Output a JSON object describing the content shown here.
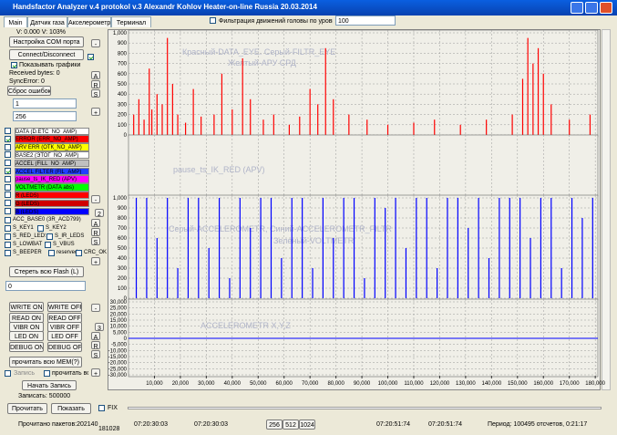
{
  "window": {
    "title": "Handsfactor Analyzer v.4 protokol v.3 Alexandr Kohlov Heater-on-line Russia 20.03.2014"
  },
  "tabs": [
    "Main",
    "Датчик газа",
    "Акселерометр",
    "Терминал"
  ],
  "toolbar": {
    "filter_label": "Фильтрация движений головы по уровню",
    "filter_value": "100"
  },
  "left": {
    "voltage": "V: 0.000   V: 103%",
    "com_button": "Настройка COM порта",
    "connect_button": "Connect/Disconnect",
    "show_graphs": "Показывать графики",
    "received": "Received bytes: 0",
    "sync": "SyncError: 0",
    "reset_button": "Сброс ошибок",
    "input1": "1",
    "input2": "256",
    "channels": [
      {
        "label": "DATA (D.ETC_NO_AMP)",
        "color": "#ffffff",
        "checked": false
      },
      {
        "label": "ERROR (ERR_NO_AMP)",
        "color": "#ff0000",
        "checked": true
      },
      {
        "label": "ARV ERR (ОТК_NO_AMP)",
        "color": "#ffff00",
        "checked": false
      },
      {
        "label": "BASE2 (ЭТОГ_NO_AMP)",
        "color": "#ffffff",
        "checked": false
      },
      {
        "label": "ACCEL (FILL_NO_AMP)",
        "color": "#c0c0c0",
        "checked": false
      },
      {
        "label": "ACCEL FILTER (FIL_AMP)",
        "color": "#2040ff",
        "checked": true
      },
      {
        "label": "pause_ts_IK_RED (APV)",
        "color": "#ff00ff",
        "checked": false
      },
      {
        "label": "VOLTMETR (DATA abs)",
        "color": "#00ff00",
        "checked": false
      },
      {
        "label": "R (LEDS)",
        "color": "#ff0000",
        "checked": false
      },
      {
        "label": "G (LEDS)",
        "color": "#d00000",
        "checked": false
      },
      {
        "label": "B (LEDS)",
        "color": "#0000ff",
        "checked": false
      }
    ],
    "flags": [
      "ACC_BASE0 (3R_ACD799)",
      "S_KEY1",
      "S_KEY2",
      "S_RED_LEDS",
      "S_IR_LEDS",
      "S_LOWBAT",
      "S_VBUS",
      "S_BEEPER",
      "reserved",
      "CRC_OK"
    ],
    "erase_button": "Стереть всю Flash (L)",
    "erase_input": "0",
    "commands": [
      "WRITE ON",
      "WRITE OFF",
      "READ ON",
      "READ OFF",
      "VIBR ON",
      "VIBR OFF",
      "LED ON",
      "LED OFF",
      "DEBUG ON",
      "DEBUG OFF"
    ],
    "read_mem": "прочитать всю MEM(?)",
    "record": "Запись",
    "read_all": "прочитать все",
    "start_record": "Начать Запись",
    "record_count": "Записать: 500000"
  },
  "side_controls": [
    "-",
    "A",
    "R",
    "S",
    "+",
    "-",
    "2",
    "A",
    "R",
    "S",
    "+",
    "-",
    "3",
    "A",
    "R",
    "S",
    "+"
  ],
  "chart_data": [
    {
      "type": "spike",
      "annotations": [
        "Красный-DATA_EYE. Серый-FILTR_EYE",
        "Желтый-АРУ СРД"
      ],
      "xlim": [
        0,
        181000
      ],
      "ylim": [
        0,
        1000
      ],
      "grid": true,
      "yticks": [
        {
          "value": 1000,
          "label": "1,000"
        },
        900,
        800,
        700,
        600,
        500,
        400,
        300,
        200,
        100,
        0
      ],
      "series": [
        {
          "color": "#ff0000",
          "x": [
            2000,
            4000,
            6000,
            8000,
            9000,
            11000,
            13000,
            15000,
            17000,
            19000,
            22000,
            25000,
            28000,
            33000,
            36000,
            40000,
            44000,
            47000,
            52000,
            56000,
            62000,
            66000,
            70000,
            73000,
            76000,
            79000,
            85000,
            92000,
            100000,
            110000,
            118000,
            128000,
            138000,
            148000,
            152000,
            154000,
            156000,
            158000,
            160000,
            163000,
            170000,
            178000
          ],
          "values": [
            200,
            350,
            150,
            650,
            250,
            400,
            300,
            950,
            500,
            200,
            120,
            450,
            180,
            200,
            600,
            250,
            750,
            350,
            150,
            200,
            100,
            180,
            450,
            300,
            850,
            350,
            200,
            150,
            100,
            120,
            150,
            100,
            150,
            200,
            550,
            950,
            700,
            850,
            600,
            300,
            150,
            200
          ]
        }
      ]
    },
    {
      "type": "line",
      "annotations": [
        "pause_ts_IK_RED (APV)"
      ],
      "xlim": [
        0,
        181000
      ],
      "grid": true
    },
    {
      "type": "spike",
      "annotations": [
        "Серый-ACCELEROMETR, Синий-ACCELEROMETR_FILTR",
        "Зеленый-VOLTMETR"
      ],
      "xlim": [
        0,
        181000
      ],
      "ylim": [
        0,
        1000
      ],
      "grid": true,
      "yticks": [
        {
          "value": 1000,
          "label": "1,000"
        },
        900,
        800,
        700,
        600,
        500,
        400,
        300,
        200,
        100,
        0
      ],
      "series": [
        {
          "color": "#0000ff",
          "x": [
            3000,
            7000,
            11000,
            15000,
            19000,
            23000,
            27000,
            31000,
            35000,
            39000,
            43000,
            47000,
            51000,
            55000,
            59000,
            63000,
            67000,
            71000,
            75000,
            79000,
            83000,
            87000,
            91000,
            95000,
            99000,
            103000,
            107000,
            111000,
            115000,
            119000,
            123000,
            127000,
            131000,
            135000,
            139000,
            143000,
            147000,
            151000,
            155000,
            159000,
            163000,
            167000,
            171000,
            175000,
            179000
          ],
          "values": [
            1000,
            1000,
            600,
            1000,
            300,
            1000,
            1000,
            500,
            1000,
            200,
            1000,
            700,
            1000,
            1000,
            400,
            1000,
            1000,
            300,
            1000,
            600,
            1000,
            1000,
            200,
            1000,
            900,
            1000,
            500,
            1000,
            1000,
            300,
            1000,
            1000,
            700,
            1000,
            400,
            1000,
            1000,
            1000,
            600,
            1000,
            1000,
            300,
            1000,
            800,
            1000
          ]
        }
      ]
    },
    {
      "type": "line",
      "annotations": [
        "ACCELEROMETR X,Y,Z"
      ],
      "xlim": [
        0,
        181000
      ],
      "ylim": [
        -30000,
        30000
      ],
      "grid": true,
      "yticks": [
        {
          "value": 30000,
          "label": "30,000"
        },
        {
          "value": 25000,
          "label": "25,000"
        },
        {
          "value": 20000,
          "label": "20,000"
        },
        {
          "value": 15000,
          "label": "15,000"
        },
        {
          "value": 10000,
          "label": "10,000"
        },
        {
          "value": 5000,
          "label": "5,000"
        },
        0,
        {
          "value": -5000,
          "label": "-5,000"
        },
        {
          "value": -10000,
          "label": "-10,000"
        },
        {
          "value": -15000,
          "label": "-15,000"
        },
        {
          "value": -20000,
          "label": "-20,000"
        },
        {
          "value": -25000,
          "label": "-25,000"
        },
        {
          "value": -30000,
          "label": "-30,000"
        }
      ],
      "xticks": [
        {
          "value": 10000,
          "label": "10,000"
        },
        {
          "value": 20000,
          "label": "20,000"
        },
        {
          "value": 30000,
          "label": "30,000"
        },
        {
          "value": 40000,
          "label": "40,000"
        },
        {
          "value": 50000,
          "label": "50,000"
        },
        {
          "value": 60000,
          "label": "60,000"
        },
        {
          "value": 70000,
          "label": "70,000"
        },
        {
          "value": 80000,
          "label": "80,000"
        },
        {
          "value": 90000,
          "label": "90,000"
        },
        {
          "value": 100000,
          "label": "100,000"
        },
        {
          "value": 110000,
          "label": "110,000"
        },
        {
          "value": 120000,
          "label": "120,000"
        },
        {
          "value": 130000,
          "label": "130,000"
        },
        {
          "value": 140000,
          "label": "140,000"
        },
        {
          "value": 150000,
          "label": "150,000"
        },
        {
          "value": 160000,
          "label": "160,000"
        },
        {
          "value": 170000,
          "label": "170,000"
        },
        {
          "value": 180000,
          "label": "180,000"
        }
      ],
      "series": [
        {
          "color": "#0000ff",
          "x": [
            0,
            181000
          ],
          "values": [
            0,
            0
          ]
        }
      ]
    }
  ],
  "status": {
    "read_button": "Прочитать",
    "show_button": "Показать",
    "fix": "FIX",
    "packets": "Прочитано пакетов:202140",
    "count": "181028",
    "t1": "07:20:30:03",
    "t2": "07:20:30:03",
    "zoom": [
      "256",
      "512",
      "1024"
    ],
    "t3": "07:20:51:74",
    "t4": "07:20:51:74",
    "period": "Период: 100495 отсчетов, 0:21:17"
  }
}
